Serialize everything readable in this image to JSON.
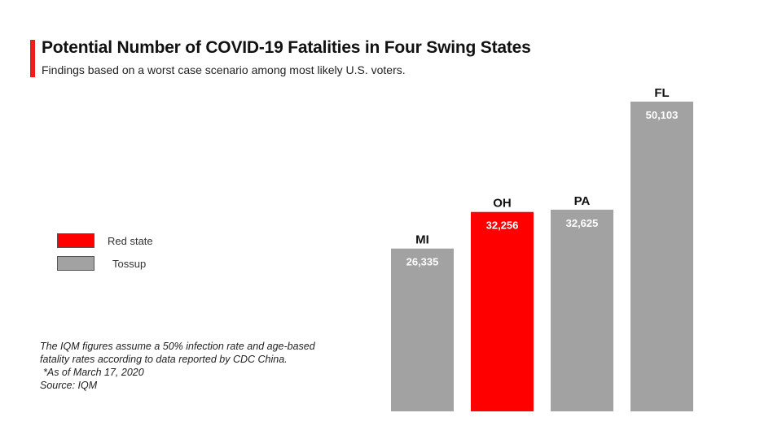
{
  "header": {
    "title": "Potential Number of COVID-19 Fatalities in Four Swing States",
    "subtitle": "Findings based on a worst case scenario among most likely U.S. voters."
  },
  "legend": [
    {
      "label": "Red state",
      "color": "#ff0000"
    },
    {
      "label": "Tossup",
      "color": "#a2a2a2"
    }
  ],
  "notes": {
    "line1": "The IQM figures assume a 50% infection rate and age-based",
    "line2": "fatality rates according to data reported by CDC China.",
    "line3": "*As of March 17, 2020",
    "line4": "Source: IQM"
  },
  "chart_data": {
    "type": "bar",
    "title": "Potential Number of COVID-19 Fatalities in Four Swing States",
    "subtitle": "Findings based on a worst case scenario among most likely U.S. voters.",
    "categories": [
      "MI",
      "OH",
      "PA",
      "FL"
    ],
    "values": [
      26335,
      32256,
      32625,
      50103
    ],
    "value_labels": [
      "26,335",
      "32,256",
      "32,625",
      "50,103"
    ],
    "groups": [
      "Tossup",
      "Red state",
      "Tossup",
      "Tossup"
    ],
    "colors": {
      "Red state": "#ff0000",
      "Tossup": "#a2a2a2"
    },
    "xlabel": "",
    "ylabel": "",
    "grid": false,
    "legend_position": "left"
  }
}
